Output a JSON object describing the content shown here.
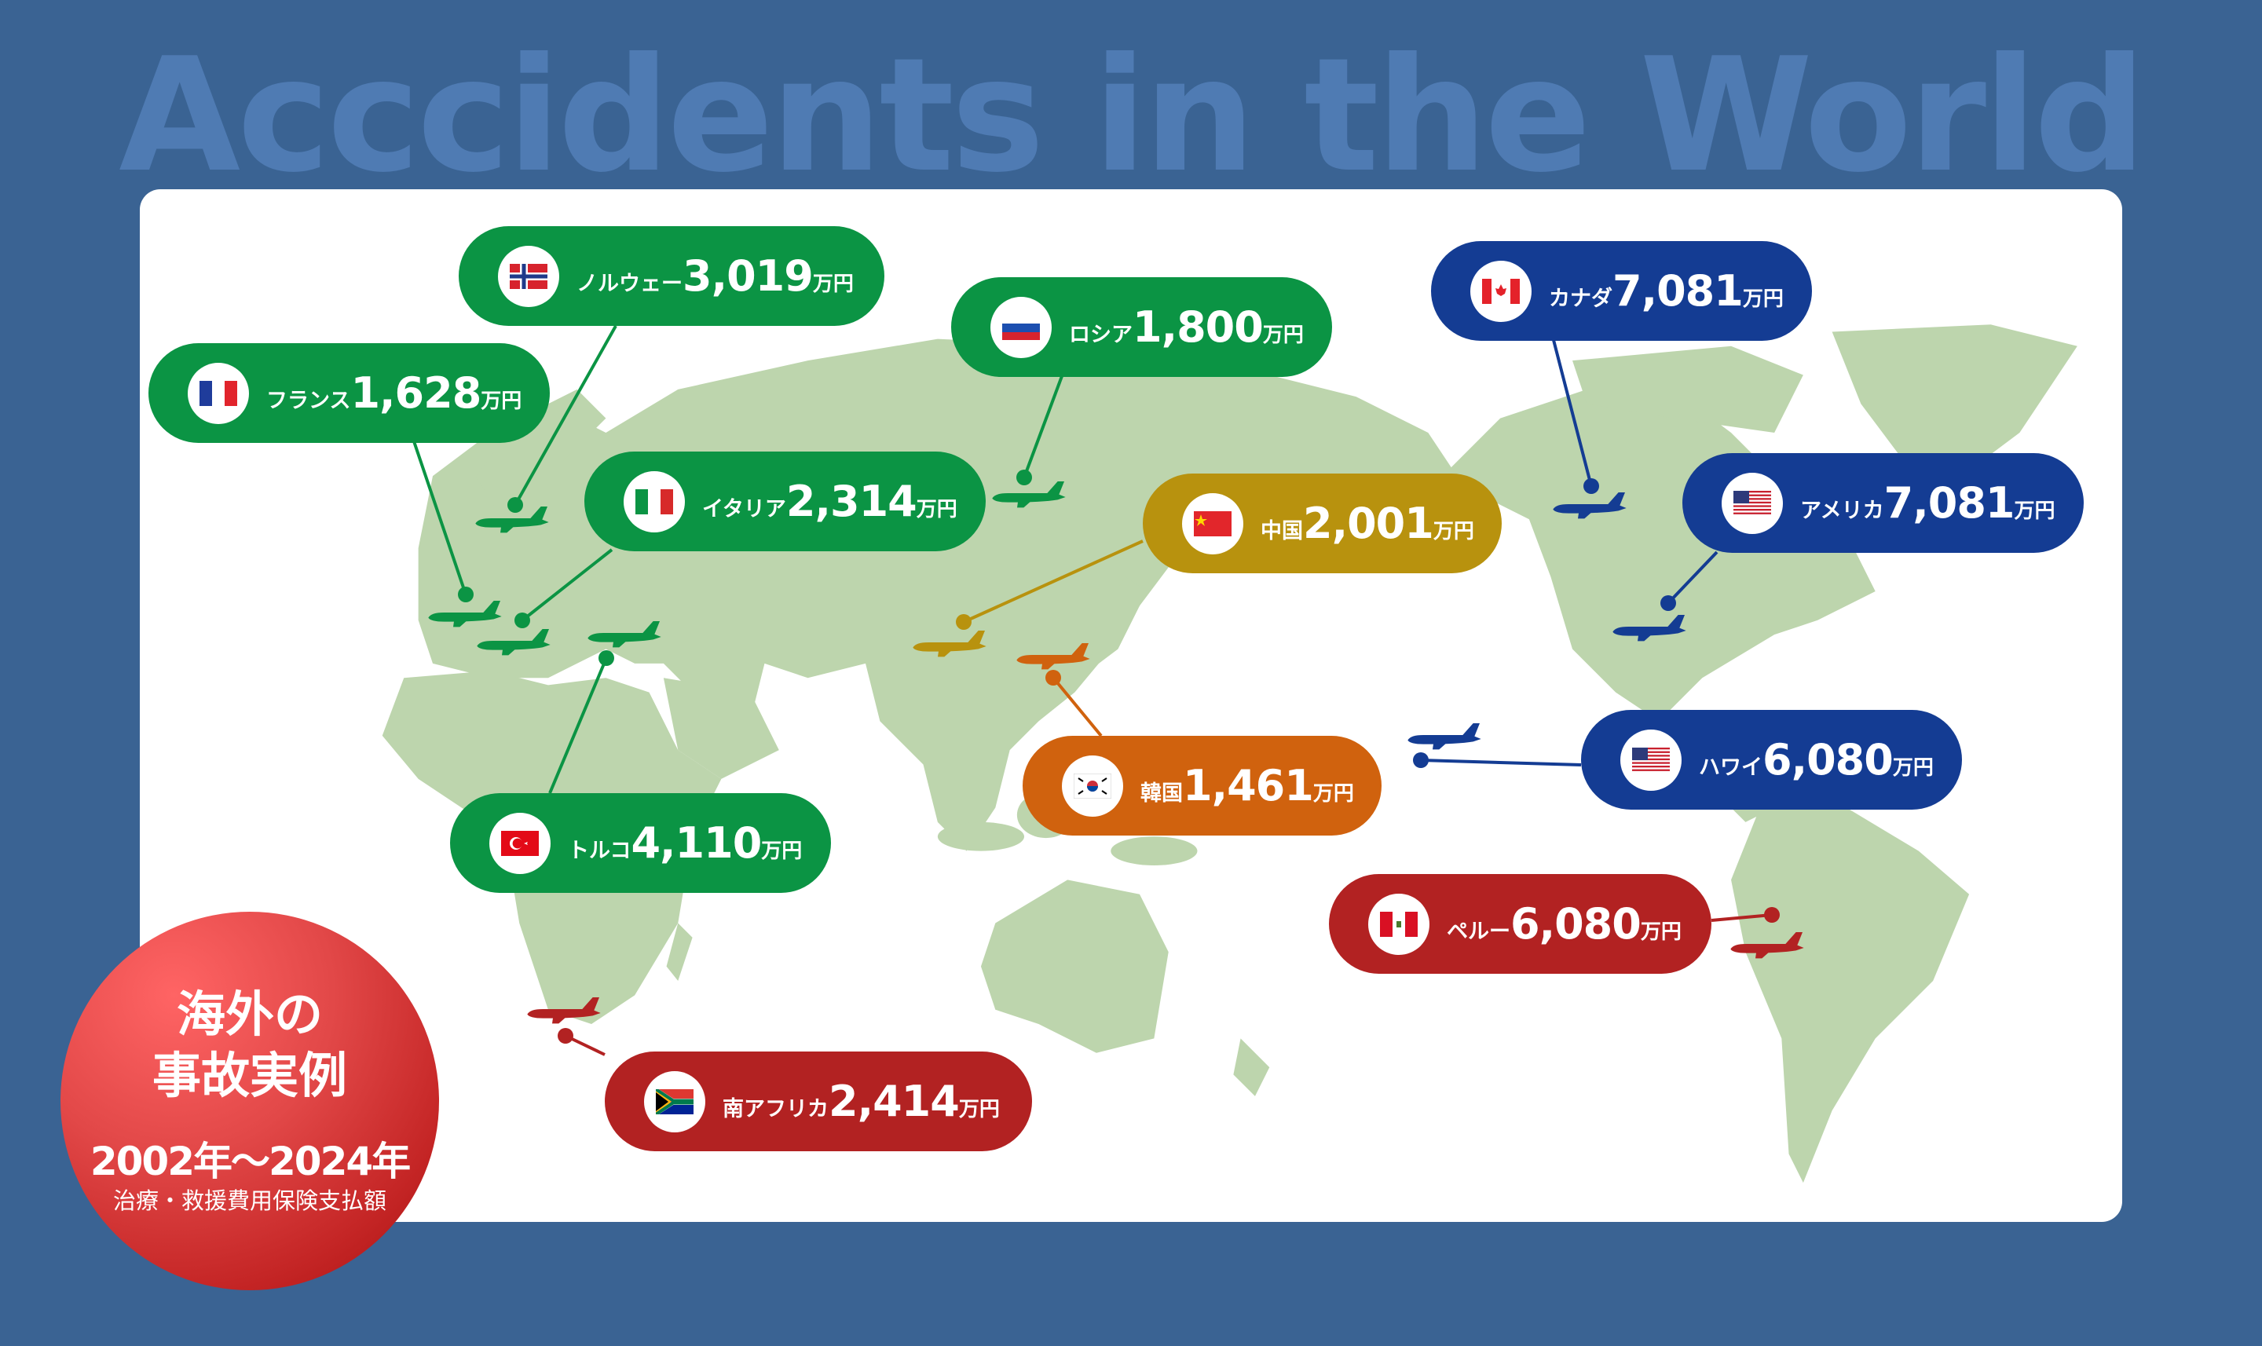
{
  "title": "Acccidents in the World",
  "badge": {
    "line1": "海外の",
    "line2": "事故実例",
    "period": "2002年〜2024年",
    "caption": "治療・救援費用保険支払額"
  },
  "colors": {
    "background": "#3a6393",
    "land": "#bdd5ad",
    "europe": "#0b9444",
    "asia_china": "#b8920e",
    "asia_korea": "#d0620e",
    "americas": "#143c93",
    "south": "#b22222"
  },
  "callouts": [
    {
      "country": "ノルウェー",
      "amount": "3,019",
      "unit": "万円",
      "flag": "norway"
    },
    {
      "country": "フランス",
      "amount": "1,628",
      "unit": "万円",
      "flag": "france"
    },
    {
      "country": "イタリア",
      "amount": "2,314",
      "unit": "万円",
      "flag": "italy"
    },
    {
      "country": "ロシア",
      "amount": "1,800",
      "unit": "万円",
      "flag": "russia"
    },
    {
      "country": "中国",
      "amount": "2,001",
      "unit": "万円",
      "flag": "china"
    },
    {
      "country": "カナダ",
      "amount": "7,081",
      "unit": "万円",
      "flag": "canada"
    },
    {
      "country": "アメリカ",
      "amount": "7,081",
      "unit": "万円",
      "flag": "usa"
    },
    {
      "country": "韓国",
      "amount": "1,461",
      "unit": "万円",
      "flag": "korea"
    },
    {
      "country": "ハワイ",
      "amount": "6,080",
      "unit": "万円",
      "flag": "usa"
    },
    {
      "country": "トルコ",
      "amount": "4,110",
      "unit": "万円",
      "flag": "turkey"
    },
    {
      "country": "ペルー",
      "amount": "6,080",
      "unit": "万円",
      "flag": "peru"
    },
    {
      "country": "南アフリカ",
      "amount": "2,414",
      "unit": "万円",
      "flag": "south-africa"
    }
  ]
}
